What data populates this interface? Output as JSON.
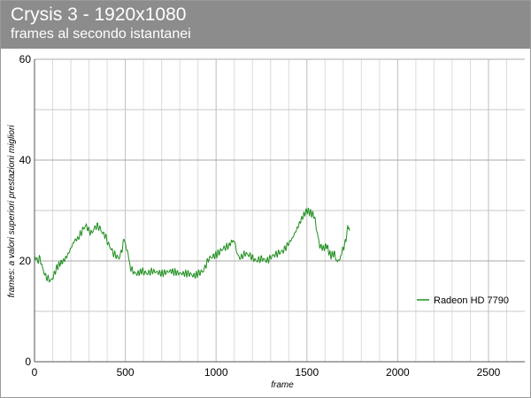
{
  "chart_data": {
    "type": "line",
    "title": "Crysis 3 - 1920x1080",
    "subtitle": "frames al secondo istantanei",
    "xlabel": "frame",
    "ylabel": "frames: a valori superiori prestazioni migliori",
    "xlim": [
      0,
      2700
    ],
    "ylim": [
      0,
      60
    ],
    "x_ticks": [
      0,
      500,
      1000,
      1500,
      2000,
      2500
    ],
    "y_ticks": [
      0,
      20,
      40,
      60
    ],
    "grid": true,
    "legend_position": "right",
    "series": [
      {
        "name": "Radeon HD 7790",
        "color": "#1f8f1f",
        "x": [
          0,
          15,
          30,
          45,
          60,
          75,
          90,
          105,
          120,
          140,
          160,
          180,
          200,
          220,
          240,
          255,
          270,
          285,
          300,
          315,
          330,
          345,
          360,
          375,
          390,
          405,
          420,
          435,
          450,
          465,
          480,
          495,
          505,
          515,
          525,
          540,
          555,
          570,
          590,
          620,
          650,
          700,
          750,
          800,
          850,
          880,
          900,
          930,
          960,
          990,
          1010,
          1040,
          1070,
          1090,
          1100,
          1110,
          1130,
          1160,
          1190,
          1220,
          1250,
          1280,
          1310,
          1340,
          1370,
          1400,
          1420,
          1440,
          1460,
          1480,
          1500,
          1520,
          1540,
          1555,
          1570,
          1590,
          1610,
          1630,
          1650,
          1665,
          1675,
          1685,
          1700,
          1715,
          1725,
          1735
        ],
        "y": [
          21,
          20,
          20.5,
          18.5,
          17,
          16.5,
          16,
          17,
          18.5,
          19.5,
          20,
          21,
          22.5,
          24,
          24.5,
          25.5,
          26.5,
          27,
          26,
          25.5,
          26.5,
          27,
          26.5,
          25.5,
          25,
          23.5,
          22.5,
          21.5,
          21,
          20.5,
          22,
          24.5,
          23,
          21,
          19,
          18,
          17.5,
          17.5,
          18,
          17.5,
          18,
          17.5,
          18,
          17.5,
          17.5,
          17,
          17.5,
          18,
          20.5,
          21,
          21.5,
          22.5,
          23,
          24,
          24.5,
          22,
          20.5,
          21.5,
          21,
          20,
          20.5,
          20,
          21,
          21.5,
          22,
          23.5,
          24.5,
          26,
          27.5,
          29,
          30,
          29.5,
          29,
          26,
          23,
          22.5,
          23,
          21,
          21.5,
          20,
          19.5,
          21,
          22.5,
          24,
          27.5,
          26
        ]
      }
    ]
  }
}
